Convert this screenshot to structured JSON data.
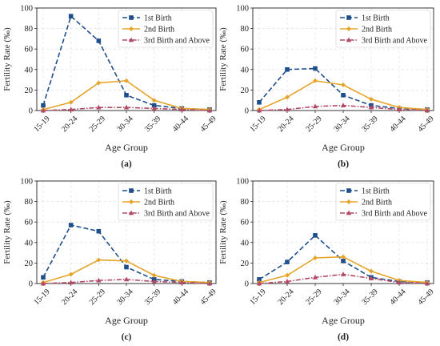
{
  "colors": {
    "first": "#1f4e8c",
    "second": "#e6a52a",
    "third": "#b24a66",
    "grid": "#d9d9d9",
    "axis": "#222222"
  },
  "chart_data": [
    {
      "type": "line",
      "panel_label": "(a)",
      "xlabel": "Age Group",
      "ylabel": "Fertility Rate (‰)",
      "ylim": [
        0,
        100
      ],
      "yticks": [
        0,
        20,
        40,
        60,
        80,
        100
      ],
      "grid": true,
      "legend_position": "top-right",
      "categories": [
        "15-19",
        "20-24",
        "25-29",
        "30-34",
        "35-39",
        "40-44",
        "45-49"
      ],
      "series": [
        {
          "name": "1st Birth",
          "style": "dashed",
          "marker": "square",
          "color": "#1f4e8c",
          "values": [
            5,
            92,
            68,
            15,
            5,
            2,
            1
          ]
        },
        {
          "name": "2nd Birth",
          "style": "solid",
          "marker": "diamond",
          "color": "#e6a52a",
          "values": [
            1,
            8,
            27,
            29,
            10,
            2,
            1
          ]
        },
        {
          "name": "3rd Birth and Above",
          "style": "dashdot",
          "marker": "triangle",
          "color": "#b24a66",
          "values": [
            0,
            1,
            3,
            3,
            2,
            1,
            0
          ]
        }
      ]
    },
    {
      "type": "line",
      "panel_label": "(b)",
      "xlabel": "Age Group",
      "ylabel": "Fertility Rate (‰)",
      "ylim": [
        0,
        100
      ],
      "yticks": [
        0,
        20,
        40,
        60,
        80,
        100
      ],
      "grid": true,
      "legend_position": "top-right",
      "categories": [
        "15-19",
        "20-24",
        "25-29",
        "30-34",
        "35-39",
        "40-44",
        "45-49"
      ],
      "series": [
        {
          "name": "1st Birth",
          "style": "dashed",
          "marker": "square",
          "color": "#1f4e8c",
          "values": [
            8,
            40,
            41,
            15,
            5,
            2,
            1
          ]
        },
        {
          "name": "2nd Birth",
          "style": "solid",
          "marker": "diamond",
          "color": "#e6a52a",
          "values": [
            1,
            13,
            29,
            25,
            11,
            3,
            1
          ]
        },
        {
          "name": "3rd Birth and Above",
          "style": "dashdot",
          "marker": "triangle",
          "color": "#b24a66",
          "values": [
            0,
            1,
            4,
            5,
            3,
            1,
            0
          ]
        }
      ]
    },
    {
      "type": "line",
      "panel_label": "(c)",
      "xlabel": "Age Group",
      "ylabel": "Fertility Rate (‰)",
      "ylim": [
        0,
        100
      ],
      "yticks": [
        0,
        20,
        40,
        60,
        80,
        100
      ],
      "grid": true,
      "legend_position": "top-right",
      "categories": [
        "15-19",
        "20-24",
        "25-29",
        "30-34",
        "35-39",
        "40-44",
        "45-49"
      ],
      "series": [
        {
          "name": "1st Birth",
          "style": "dashed",
          "marker": "square",
          "color": "#1f4e8c",
          "values": [
            6,
            57,
            51,
            16,
            4,
            2,
            1
          ]
        },
        {
          "name": "2nd Birth",
          "style": "solid",
          "marker": "diamond",
          "color": "#e6a52a",
          "values": [
            1,
            9,
            23,
            22,
            8,
            2,
            1
          ]
        },
        {
          "name": "3rd Birth and Above",
          "style": "dashdot",
          "marker": "triangle",
          "color": "#b24a66",
          "values": [
            0,
            1,
            3,
            4,
            2,
            1,
            0
          ]
        }
      ]
    },
    {
      "type": "line",
      "panel_label": "(d)",
      "xlabel": "Age Group",
      "ylabel": "Fertility Rate (‰)",
      "ylim": [
        0,
        100
      ],
      "yticks": [
        0,
        20,
        40,
        60,
        80,
        100
      ],
      "grid": true,
      "legend_position": "top-right",
      "categories": [
        "15-19",
        "20-24",
        "25-29",
        "30-34",
        "35-39",
        "40-44",
        "45-49"
      ],
      "series": [
        {
          "name": "1st Birth",
          "style": "dashed",
          "marker": "square",
          "color": "#1f4e8c",
          "values": [
            4,
            21,
            47,
            22,
            6,
            2,
            1
          ]
        },
        {
          "name": "2nd Birth",
          "style": "solid",
          "marker": "diamond",
          "color": "#e6a52a",
          "values": [
            1,
            8,
            25,
            26,
            12,
            3,
            1
          ]
        },
        {
          "name": "3rd Birth and Above",
          "style": "dashdot",
          "marker": "triangle",
          "color": "#b24a66",
          "values": [
            0,
            2,
            6,
            9,
            5,
            1,
            0
          ]
        }
      ]
    }
  ]
}
